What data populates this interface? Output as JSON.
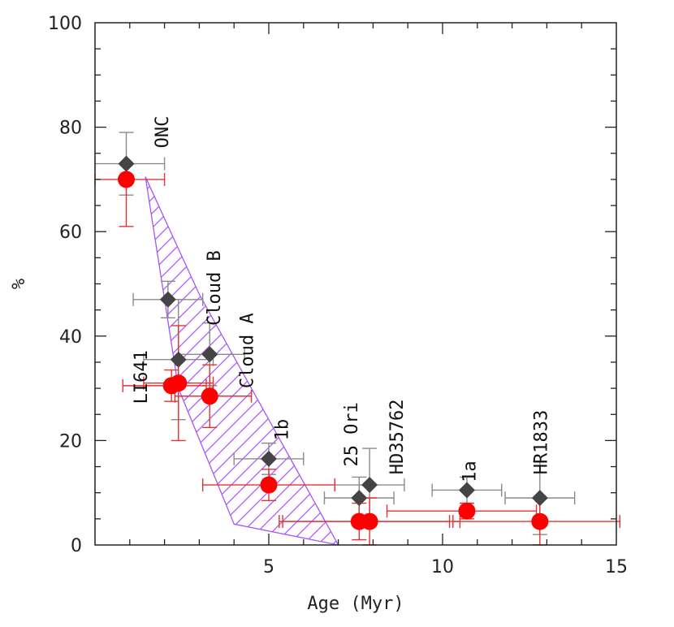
{
  "chart_data": {
    "type": "scatter",
    "title": "",
    "xlabel": "Age (Myr)",
    "ylabel": "%",
    "xlim": [
      0,
      15
    ],
    "ylim": [
      0,
      100
    ],
    "xticks": [
      5,
      10,
      15
    ],
    "yticks": [
      0,
      20,
      40,
      60,
      80,
      100
    ],
    "series": [
      {
        "name": "diamonds",
        "marker": "diamond",
        "color": "#444444",
        "errcolor": "#8a8a8a",
        "points": [
          {
            "x": 0.9,
            "y": 73,
            "xerr": [
              0.9,
              1.1
            ],
            "yerr": [
              6,
              6
            ]
          },
          {
            "x": 2.1,
            "y": 47,
            "xerr": [
              1.0,
              1.0
            ],
            "yerr": [
              3.5,
              3.5
            ]
          },
          {
            "x": 2.4,
            "y": 35.5,
            "xerr": [
              1.0,
              1.0
            ],
            "yerr": [
              11.5,
              11.5
            ]
          },
          {
            "x": 3.3,
            "y": 36.5,
            "xerr": [
              0.9,
              1.0
            ],
            "yerr": [
              6,
              6
            ]
          },
          {
            "x": 5.0,
            "y": 16.5,
            "xerr": [
              1.0,
              1.0
            ],
            "yerr": [
              3,
              3
            ]
          },
          {
            "x": 7.6,
            "y": 9,
            "xerr": [
              1.0,
              1.0
            ],
            "yerr": [
              4,
              4
            ]
          },
          {
            "x": 7.9,
            "y": 11.5,
            "xerr": [
              1.0,
              1.0
            ],
            "yerr": [
              7,
              7
            ]
          },
          {
            "x": 10.7,
            "y": 10.5,
            "xerr": [
              1.0,
              1.0
            ],
            "yerr": [
              2.5,
              2.5
            ]
          },
          {
            "x": 12.8,
            "y": 9,
            "xerr": [
              1.0,
              1.0
            ],
            "yerr": [
              7,
              7
            ]
          }
        ]
      },
      {
        "name": "circles",
        "marker": "circle",
        "color": "#ff0000",
        "errcolor": "#e83030",
        "points": [
          {
            "x": 0.9,
            "y": 70,
            "xerr": [
              0.9,
              1.1
            ],
            "yerr": [
              9,
              0
            ]
          },
          {
            "x": 2.2,
            "y": 30.5,
            "xerr": [
              1.4,
              1.0
            ],
            "yerr": [
              3,
              3
            ]
          },
          {
            "x": 2.4,
            "y": 31,
            "xerr": [
              1.0,
              1.0
            ],
            "yerr": [
              11,
              11
            ]
          },
          {
            "x": 3.3,
            "y": 28.5,
            "xerr": [
              1.0,
              1.2
            ],
            "yerr": [
              6,
              6
            ]
          },
          {
            "x": 5.0,
            "y": 11.5,
            "xerr": [
              1.9,
              1.9
            ],
            "yerr": [
              3,
              3
            ]
          },
          {
            "x": 7.6,
            "y": 4.5,
            "xerr": [
              2.2,
              2.6
            ],
            "yerr": [
              3.5,
              3.5
            ]
          },
          {
            "x": 7.9,
            "y": 4.5,
            "xerr": [
              2.6,
              2.6
            ],
            "yerr": [
              4.5,
              4.5
            ]
          },
          {
            "x": 10.7,
            "y": 6.5,
            "xerr": [
              2.3,
              2.0
            ],
            "yerr": [
              1.5,
              1.5
            ]
          },
          {
            "x": 12.8,
            "y": 4.5,
            "xerr": [
              2.5,
              2.3
            ],
            "yerr": [
              4.5,
              4.5
            ]
          }
        ]
      }
    ],
    "hatched_region": {
      "color": "#a855f7",
      "polygon": [
        [
          1.45,
          70.5
        ],
        [
          3.0,
          48
        ],
        [
          4.0,
          36
        ],
        [
          7.0,
          0
        ],
        [
          4.0,
          4
        ],
        [
          2.4,
          30
        ]
      ]
    },
    "annotations": [
      {
        "text": "ONC",
        "x": 2.1,
        "y": 76
      },
      {
        "text": "LI641",
        "x": 1.5,
        "y": 27
      },
      {
        "text": "Cloud B",
        "x": 3.6,
        "y": 42
      },
      {
        "text": "Cloud A",
        "x": 4.55,
        "y": 30
      },
      {
        "text": "1b",
        "x": 5.55,
        "y": 20
      },
      {
        "text": "25 Ori",
        "x": 7.55,
        "y": 15
      },
      {
        "text": "HD35762",
        "x": 8.85,
        "y": 13.5
      },
      {
        "text": "1a",
        "x": 10.95,
        "y": 12
      },
      {
        "text": "HR1833",
        "x": 13.0,
        "y": 13.5
      }
    ]
  }
}
